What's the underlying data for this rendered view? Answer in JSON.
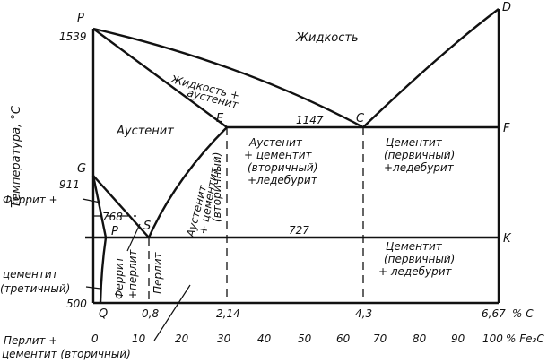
{
  "points": {
    "p_top": "P",
    "d": "D",
    "e": "E",
    "c": "C",
    "f": "F",
    "g": "G",
    "s": "S",
    "p_low": "P",
    "q": "Q",
    "k": "K"
  },
  "temps": {
    "t1539": "1539",
    "t1147": "1147",
    "t911": "911",
    "t768": "768",
    "t727": "727",
    "t500": "500"
  },
  "y_axis_label": "Температура, °С",
  "regions": {
    "liquid": "Жидкость",
    "liquid_aust_1": "Жидкость +",
    "liquid_aust_2": "аустенит",
    "austenite": "Аустенит",
    "ledeb_1": "Аустенит",
    "ledeb_2": "+ цементит",
    "ledeb_3": "(вторичный)",
    "ledeb_4": "+ледебурит",
    "cem_led_upper_1": "Цементит",
    "cem_led_upper_2": "(первичный)",
    "cem_led_upper_3": "+ледебурит",
    "cem_led_lower_1": "Цементит",
    "cem_led_lower_2": "(первичный)",
    "cem_led_lower_3": "+ ледебурит",
    "aust_cem_vert_1": "Аустенит",
    "aust_cem_vert_2": "+ цементит",
    "aust_cem_vert_3": "(вторичный)",
    "ferrite_plus": "Феррит +",
    "cementite_tert_1": "цементит",
    "cementite_tert_2": "(третичный)",
    "ferrite_pearlite_1": "Феррит",
    "ferrite_pearlite_2": "+перлит",
    "pearlite": "Перлит",
    "pearl_cem_1": "Перлит +",
    "pearl_cem_2": "цементит (вторичный)"
  },
  "c_axis": {
    "ticks": [
      "0,8",
      "2,14",
      "4,3",
      "6,67"
    ],
    "unit": "% C"
  },
  "fe3c_axis": {
    "ticks": [
      "0",
      "10",
      "20",
      "30",
      "40",
      "50",
      "60",
      "70",
      "80",
      "90",
      "100"
    ],
    "unit": "% Fe₃C"
  }
}
